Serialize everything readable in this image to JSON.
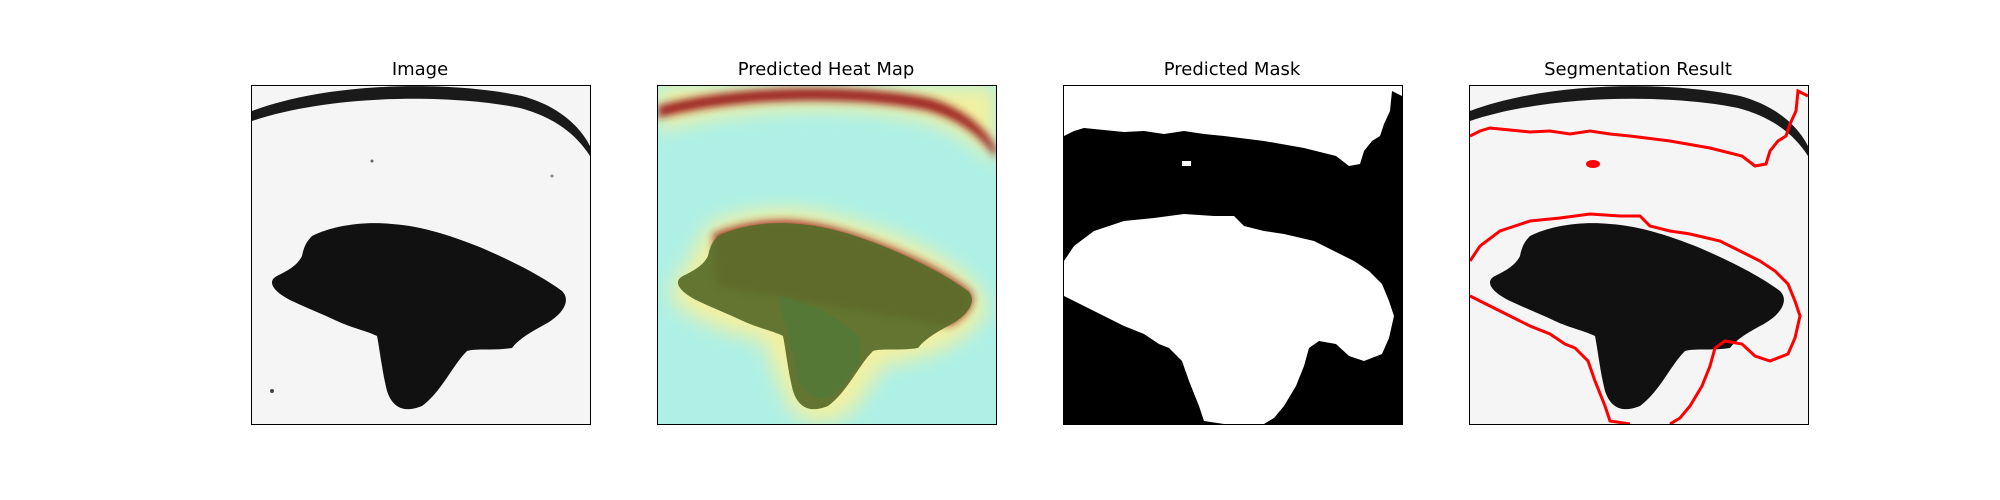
{
  "panels": [
    {
      "title": "Image"
    },
    {
      "title": "Predicted Heat Map"
    },
    {
      "title": "Predicted Mask"
    },
    {
      "title": "Segmentation Result"
    }
  ],
  "colors": {
    "background": "#ffffff",
    "axes_frame": "#000000",
    "segmentation_contour": "#ff0000",
    "heatmap_low": "#aef0e6",
    "heatmap_mid": "#f2f0a0",
    "heatmap_high": "#8b1414",
    "mask_foreground": "#ffffff",
    "mask_background": "#000000"
  }
}
